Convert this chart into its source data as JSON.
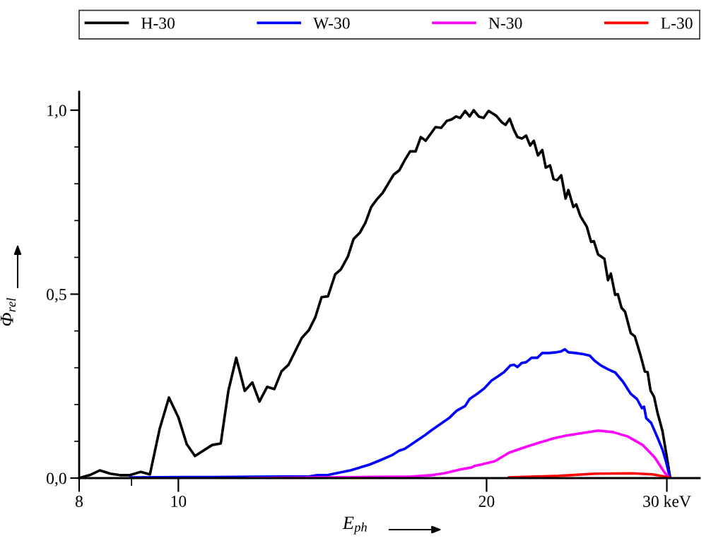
{
  "chart_data": {
    "type": "line",
    "xlabel": "E$_{ph}$",
    "ylabel": "Φ$_{rel}$",
    "log": "x",
    "legend": "top",
    "grid": false,
    "marker": "none",
    "line_style": "solid",
    "xlim": [
      8,
      32.3
    ],
    "xticks": [
      8,
      {
        "value": 9,
        "label": null
      },
      10,
      20,
      {
        "value": 30,
        "label": "30 keV"
      }
    ],
    "ylim": [
      0,
      1.05
    ],
    "yticks": [
      {
        "value": 0,
        "label": "0,0"
      },
      {
        "value": 0.1,
        "label": null
      },
      {
        "value": 0.2,
        "label": null
      },
      {
        "value": 0.3,
        "label": null
      },
      {
        "value": 0.4,
        "label": null
      },
      {
        "value": 0.5,
        "label": "0,5"
      },
      {
        "value": 0.6,
        "label": null
      },
      {
        "value": 0.7,
        "label": null
      },
      {
        "value": 0.8,
        "label": null
      },
      {
        "value": 0.9,
        "label": null
      },
      {
        "value": 1.0,
        "label": "1,0"
      }
    ],
    "series": [
      {
        "name": "H-30",
        "color": "#000000",
        "x": [
          8.0,
          8.19,
          8.38,
          8.58,
          8.77,
          8.97,
          9.19,
          9.38,
          9.59,
          9.79,
          10.0,
          10.19,
          10.38,
          10.79,
          11.0,
          11.19,
          11.39,
          11.61,
          11.81,
          12.0,
          12.21,
          12.41,
          12.61,
          12.81,
          13.2,
          13.41,
          13.61,
          13.8,
          14.0,
          14.23,
          14.41,
          14.64,
          14.83,
          15.04,
          15.23,
          15.43,
          15.63,
          15.83,
          16.23,
          16.44,
          16.63,
          16.84,
          17.05,
          17.25,
          17.44,
          17.83,
          18.06,
          18.29,
          18.49,
          18.67,
          18.85,
          19.06,
          19.25,
          19.43,
          19.65,
          19.87,
          20.09,
          20.44,
          20.7,
          20.87,
          21.07,
          21.27,
          21.44,
          21.65,
          21.86,
          22.06,
          22.24,
          22.45,
          22.67,
          22.85,
          23.07,
          23.25,
          23.44,
          23.66,
          23.89,
          24.04,
          24.31,
          24.47,
          24.7,
          25.06,
          25.3,
          25.46,
          25.7,
          26.07,
          26.28,
          26.45,
          26.71,
          26.87,
          27.09,
          27.31,
          27.66,
          27.92,
          28.28,
          28.55,
          28.73,
          28.92,
          29.15,
          29.38,
          29.71,
          29.95,
          30.23
        ],
        "values": [
          0.0,
          0.008,
          0.021,
          0.012,
          0.008,
          0.008,
          0.017,
          0.01,
          0.135,
          0.219,
          0.165,
          0.092,
          0.06,
          0.09,
          0.094,
          0.237,
          0.327,
          0.237,
          0.26,
          0.208,
          0.248,
          0.242,
          0.29,
          0.308,
          0.381,
          0.402,
          0.438,
          0.492,
          0.494,
          0.554,
          0.567,
          0.602,
          0.65,
          0.667,
          0.694,
          0.737,
          0.758,
          0.775,
          0.825,
          0.837,
          0.863,
          0.888,
          0.888,
          0.927,
          0.917,
          0.954,
          0.952,
          0.971,
          0.975,
          0.983,
          0.979,
          0.998,
          0.983,
          1.0,
          0.983,
          0.979,
          0.998,
          0.985,
          0.967,
          0.96,
          0.977,
          0.946,
          0.927,
          0.923,
          0.931,
          0.904,
          0.917,
          0.877,
          0.892,
          0.844,
          0.85,
          0.813,
          0.81,
          0.823,
          0.76,
          0.783,
          0.737,
          0.744,
          0.712,
          0.683,
          0.642,
          0.644,
          0.608,
          0.596,
          0.538,
          0.556,
          0.498,
          0.5,
          0.463,
          0.452,
          0.394,
          0.385,
          0.333,
          0.29,
          0.288,
          0.238,
          0.221,
          0.177,
          0.127,
          0.069,
          0.0
        ]
      },
      {
        "name": "W-30",
        "color": "#0000ff",
        "x": [
          8.98,
          10.79,
          12.65,
          13.37,
          13.67,
          13.98,
          14.25,
          14.73,
          15.38,
          15.73,
          16.16,
          16.44,
          16.63,
          17.38,
          17.69,
          18.38,
          18.7,
          19.06,
          19.25,
          19.58,
          19.9,
          20.22,
          20.48,
          20.8,
          21.1,
          21.27,
          21.44,
          21.65,
          21.86,
          22.13,
          22.42,
          22.67,
          23.0,
          23.4,
          23.63,
          23.85,
          24.04,
          24.43,
          24.86,
          25.22,
          25.5,
          25.87,
          26.28,
          26.71,
          27.18,
          27.66,
          28.05,
          28.37,
          28.5,
          28.64,
          28.96,
          29.38,
          29.71,
          29.95,
          30.18
        ],
        "values": [
          0.002,
          0.003,
          0.004,
          0.004,
          0.008,
          0.008,
          0.013,
          0.021,
          0.037,
          0.048,
          0.062,
          0.075,
          0.079,
          0.115,
          0.131,
          0.163,
          0.183,
          0.196,
          0.215,
          0.229,
          0.244,
          0.265,
          0.275,
          0.288,
          0.306,
          0.308,
          0.302,
          0.313,
          0.315,
          0.327,
          0.327,
          0.34,
          0.34,
          0.342,
          0.344,
          0.35,
          0.342,
          0.34,
          0.337,
          0.333,
          0.319,
          0.306,
          0.296,
          0.287,
          0.262,
          0.229,
          0.215,
          0.19,
          0.194,
          0.163,
          0.15,
          0.11,
          0.077,
          0.044,
          0.006
        ]
      },
      {
        "name": "N-30",
        "color": "#ff00ff",
        "x": [
          11.68,
          16.89,
          17.69,
          18.17,
          18.7,
          18.82,
          19.34,
          19.46,
          19.77,
          20.38,
          21.04,
          21.75,
          22.49,
          23.25,
          23.89,
          24.86,
          25.7,
          26.58,
          27.48,
          28.41,
          29.19,
          29.85,
          30.14
        ],
        "values": [
          0.0,
          0.004,
          0.008,
          0.013,
          0.021,
          0.023,
          0.029,
          0.033,
          0.037,
          0.046,
          0.069,
          0.083,
          0.096,
          0.108,
          0.115,
          0.123,
          0.129,
          0.125,
          0.113,
          0.09,
          0.056,
          0.015,
          0.002
        ]
      },
      {
        "name": "L-30",
        "color": "#ff0000",
        "x": [
          21.04,
          23.51,
          25.54,
          27.79,
          29.05,
          30.14
        ],
        "values": [
          0.002,
          0.006,
          0.012,
          0.013,
          0.01,
          0.002
        ]
      }
    ]
  }
}
